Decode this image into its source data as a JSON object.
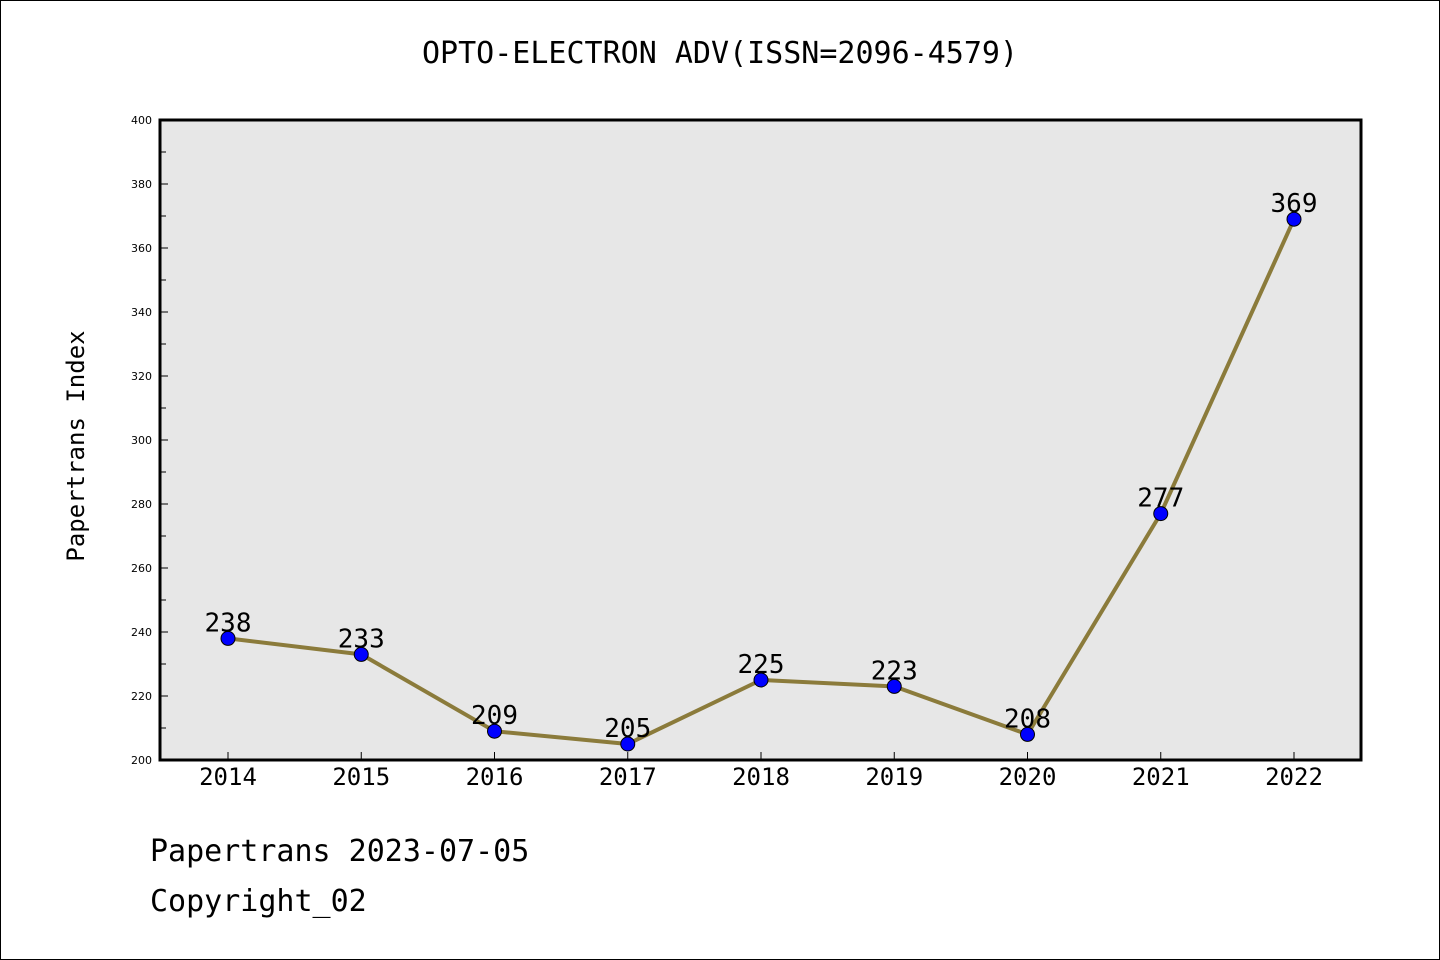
{
  "chart_data": {
    "type": "line",
    "title": "OPTO-ELECTRON ADV(ISSN=2096-4579)",
    "xlabel": "",
    "ylabel": "Papertrans Index",
    "categories": [
      "2014",
      "2015",
      "2016",
      "2017",
      "2018",
      "2019",
      "2020",
      "2021",
      "2022"
    ],
    "values": [
      238,
      233,
      209,
      205,
      225,
      223,
      208,
      277,
      369
    ],
    "ylim": [
      200,
      400
    ],
    "yticks": [
      200,
      220,
      240,
      260,
      280,
      300,
      320,
      340,
      360,
      380,
      400
    ],
    "grid": false,
    "line_color": "#8b7b3b",
    "marker_color": "#0000ff",
    "plot_background": "#e7e7e7"
  },
  "footer": {
    "line1": "Papertrans 2023-07-05",
    "line2": "Copyright_02"
  }
}
